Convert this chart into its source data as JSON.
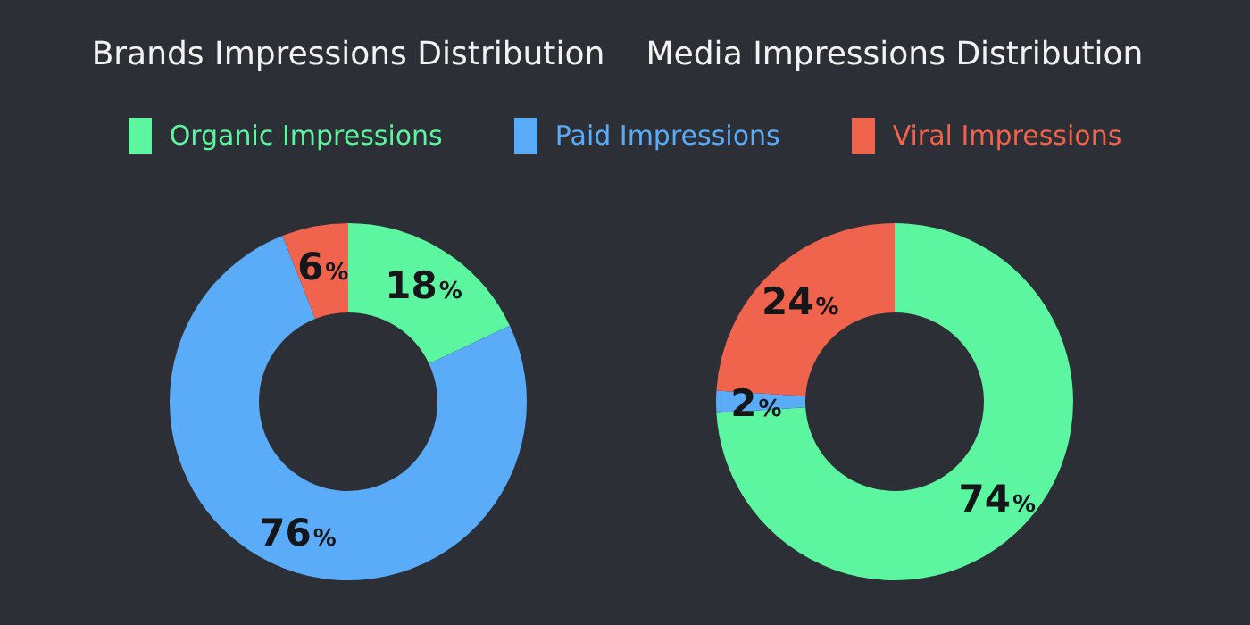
{
  "chart_data": [
    {
      "type": "donut",
      "title": "Brands Impressions Distribution",
      "categories": [
        "Organic Impressions",
        "Paid Impressions",
        "Viral Impressions"
      ],
      "values": [
        18,
        76,
        6
      ],
      "colors": [
        "#5cf5a0",
        "#5aabf8",
        "#f0634c"
      ],
      "value_labels": [
        "18%",
        "76%",
        "6%"
      ],
      "legend": "top"
    },
    {
      "type": "donut",
      "title": "Media Impressions Distribution",
      "categories": [
        null,
        null,
        null
      ],
      "values": [
        74,
        2,
        24
      ],
      "colors": [
        "#5cf5a0",
        "#5aabf8",
        "#f0634c"
      ],
      "value_labels": [
        "74%",
        "2%",
        "24%"
      ]
    }
  ]
}
